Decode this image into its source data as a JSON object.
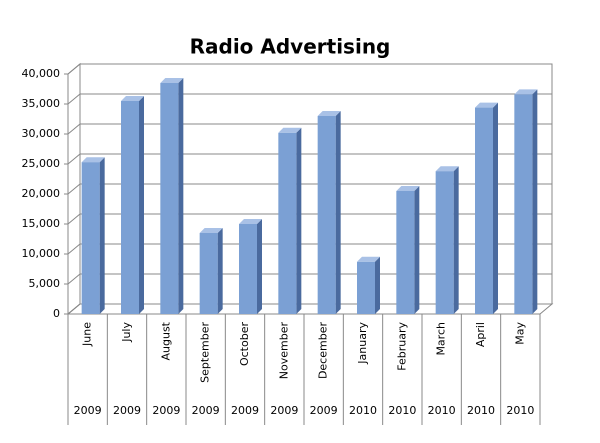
{
  "chart_data": {
    "type": "bar3d",
    "title": "Radio Advertising",
    "categories": [
      "June",
      "July",
      "August",
      "September",
      "October",
      "November",
      "December",
      "January",
      "February",
      "March",
      "April",
      "May"
    ],
    "years": [
      "2009",
      "2009",
      "2009",
      "2009",
      "2009",
      "2009",
      "2009",
      "2010",
      "2010",
      "2010",
      "2010",
      "2010"
    ],
    "values": [
      25300,
      35500,
      38500,
      13500,
      15000,
      30200,
      33000,
      8700,
      20500,
      23800,
      34400,
      36600
    ],
    "color": "#7ba0d4",
    "ylim": [
      0,
      40000
    ],
    "yticks": [
      {
        "value": 0,
        "label": "0"
      },
      {
        "value": 5000,
        "label": "5,000"
      },
      {
        "value": 10000,
        "label": "10,000"
      },
      {
        "value": 15000,
        "label": "15,000"
      },
      {
        "value": 20000,
        "label": "20,000"
      },
      {
        "value": 25000,
        "label": "25,000"
      },
      {
        "value": 30000,
        "label": "30,000"
      },
      {
        "value": 35000,
        "label": "35,000"
      },
      {
        "value": 40000,
        "label": "40,000"
      }
    ],
    "grid": true
  }
}
